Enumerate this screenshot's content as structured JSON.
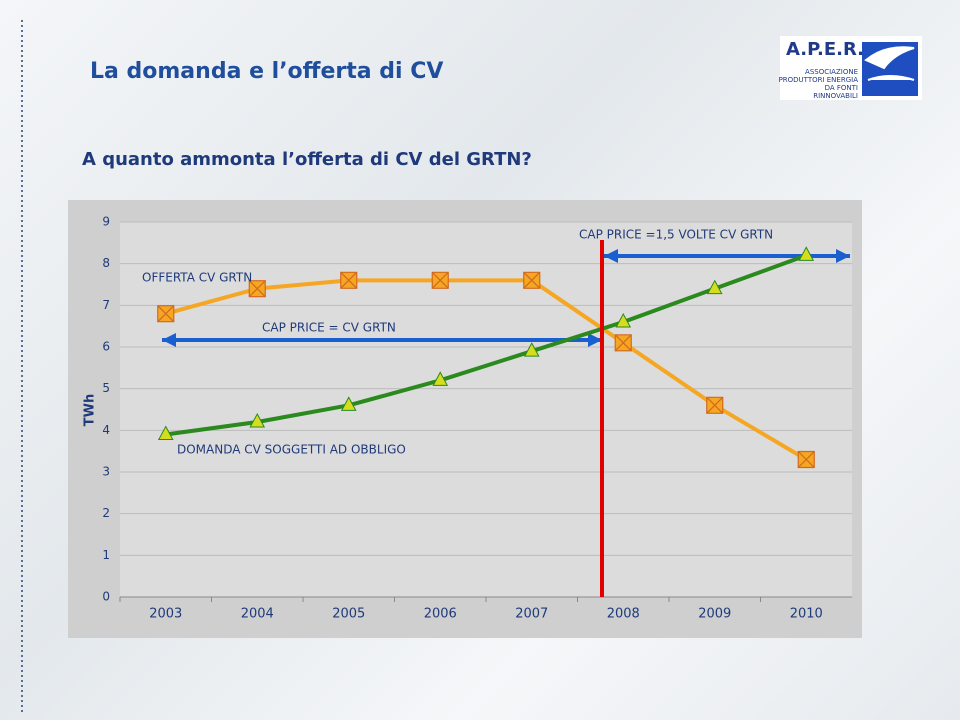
{
  "header": {
    "title": "La domanda e l’offerta di CV",
    "subtitle": "A quanto ammonta l’offerta di CV del GRTN?",
    "logo": {
      "name": "A.P.E.R.",
      "lines": [
        "ASSOCIAZIONE",
        "PRODUTTORI ENERGIA",
        "DA FONTI",
        "RINNOVABILI"
      ]
    }
  },
  "chart_data": {
    "type": "line",
    "y_label": "TWh",
    "categories": [
      "2003",
      "2004",
      "2005",
      "2006",
      "2007",
      "2008",
      "2009",
      "2010"
    ],
    "series": [
      {
        "color": "#f5a623",
        "marker": "x-box",
        "values": [
          6.8,
          7.4,
          7.6,
          7.6,
          7.6,
          6.1,
          4.6,
          3.3
        ]
      },
      {
        "color": "#2a8a1e",
        "marker": "triangle",
        "values": [
          3.9,
          4.2,
          4.6,
          5.2,
          5.9,
          6.6,
          7.4,
          8.2
        ]
      }
    ],
    "ylim": [
      0,
      9
    ],
    "yticks": [
      0,
      1,
      2,
      3,
      4,
      5,
      6,
      7,
      8,
      9
    ],
    "grid": true,
    "annotations": [
      "OFFERTA CV GRTN",
      "CAP PRICE = CV GRTN",
      "CAP PRICE =1,5 VOLTE CV GRTN",
      "DOMANDA CV SOGGETTI AD OBBLIGO"
    ]
  }
}
